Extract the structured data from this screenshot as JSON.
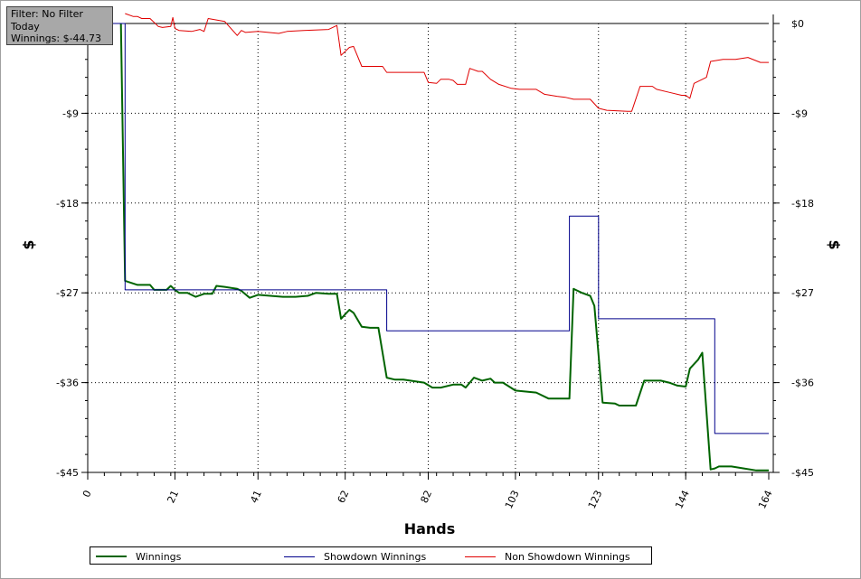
{
  "info_box": {
    "filter": "Filter: No Filter",
    "period": "Today",
    "winnings": "Winnings: $-44.73"
  },
  "legend": {
    "items": [
      {
        "label": "Winnings",
        "color": "#006400",
        "width": 2
      },
      {
        "label": "Showdown Winnings",
        "color": "#00008b",
        "width": 1
      },
      {
        "label": "Non Showdown Winnings",
        "color": "#e00000",
        "width": 1
      }
    ]
  },
  "chart_data": {
    "type": "line",
    "xlabel": "Hands",
    "ylabel": "$",
    "xlim": [
      0,
      164
    ],
    "ylim": [
      -45,
      0
    ],
    "x_ticks": [
      0,
      21,
      41,
      62,
      82,
      103,
      123,
      144,
      164
    ],
    "y_ticks": [
      0,
      -9,
      -18,
      -27,
      -36,
      -45
    ],
    "y_tick_labels": [
      "$0",
      "-$9",
      "-$18",
      "-$27",
      "-$36",
      "-$45"
    ],
    "grid": true,
    "series": [
      {
        "name": "Winnings",
        "color": "#006400",
        "x": [
          8,
          9,
          12,
          15,
          16,
          19,
          20,
          21,
          22,
          24,
          26,
          28,
          30,
          31,
          33,
          36,
          37,
          39,
          41,
          44,
          47,
          50,
          53,
          55,
          58,
          60,
          61,
          63,
          64,
          66,
          68,
          70,
          72,
          74,
          76,
          81,
          83,
          85,
          88,
          90,
          91,
          93,
          95,
          97,
          98,
          100,
          103,
          108,
          111,
          114,
          116,
          117,
          119,
          121,
          122,
          124,
          127,
          128,
          132,
          134,
          138,
          140,
          142,
          144,
          145,
          147,
          148,
          150,
          151,
          152,
          155,
          158,
          161,
          164
        ],
        "y": [
          0,
          -25.8,
          -26.2,
          -26.2,
          -26.7,
          -26.7,
          -26.3,
          -26.7,
          -27.0,
          -27.0,
          -27.4,
          -27.1,
          -27.1,
          -26.3,
          -26.4,
          -26.6,
          -26.8,
          -27.5,
          -27.2,
          -27.3,
          -27.4,
          -27.4,
          -27.3,
          -27.0,
          -27.1,
          -27.1,
          -29.6,
          -28.7,
          -29.0,
          -30.4,
          -30.5,
          -30.5,
          -35.5,
          -35.7,
          -35.7,
          -36.0,
          -36.5,
          -36.5,
          -36.2,
          -36.2,
          -36.5,
          -35.5,
          -35.8,
          -35.6,
          -36.0,
          -36.0,
          -36.8,
          -37.0,
          -37.6,
          -37.6,
          -37.6,
          -26.6,
          -27.0,
          -27.3,
          -28.3,
          -38.0,
          -38.1,
          -38.3,
          -38.3,
          -35.8,
          -35.8,
          -36.0,
          -36.3,
          -36.4,
          -34.6,
          -33.7,
          -33.0,
          -44.7,
          -44.6,
          -44.4,
          -44.4,
          -44.6,
          -44.8,
          -44.8
        ]
      },
      {
        "name": "Showdown Winnings",
        "color": "#00008b",
        "x": [
          0,
          8,
          9,
          71,
          72,
          115,
          116,
          122,
          123,
          150,
          151,
          164
        ],
        "y": [
          0,
          0,
          -26.7,
          -26.7,
          -30.8,
          -30.8,
          -19.3,
          -19.3,
          -29.6,
          -29.6,
          -41.1,
          -41.1
        ],
        "step": true
      },
      {
        "name": "Non Showdown Winnings",
        "color": "#e00000",
        "x": [
          9,
          11,
          12,
          13,
          15,
          17,
          18,
          20,
          20.5,
          21,
          22,
          25,
          27,
          28,
          29,
          33,
          36,
          37,
          38,
          41,
          46,
          48,
          52,
          58,
          60,
          61,
          63,
          64,
          66,
          68,
          70,
          71,
          72,
          77,
          81,
          82,
          84,
          85,
          87,
          88,
          89,
          91,
          92,
          94,
          95,
          97,
          99,
          102,
          104,
          108,
          110,
          113,
          115,
          117,
          121,
          123,
          125,
          130,
          131,
          133,
          136,
          137,
          140,
          143,
          144,
          145,
          146,
          149,
          150,
          153,
          156,
          159,
          162,
          164
        ],
        "y": [
          1.0,
          0.7,
          0.7,
          0.5,
          0.5,
          -0.3,
          -0.4,
          -0.3,
          0.6,
          -0.5,
          -0.7,
          -0.8,
          -0.6,
          -0.8,
          0.5,
          0.2,
          -1.2,
          -0.7,
          -0.9,
          -0.8,
          -1.0,
          -0.8,
          -0.7,
          -0.6,
          -0.2,
          -3.2,
          -2.4,
          -2.3,
          -4.3,
          -4.3,
          -4.3,
          -4.3,
          -4.9,
          -4.9,
          -4.9,
          -5.9,
          -6.0,
          -5.6,
          -5.6,
          -5.7,
          -6.1,
          -6.1,
          -4.5,
          -4.8,
          -4.8,
          -5.6,
          -6.1,
          -6.5,
          -6.6,
          -6.6,
          -7.1,
          -7.3,
          -7.4,
          -7.6,
          -7.6,
          -8.5,
          -8.7,
          -8.8,
          -8.8,
          -6.3,
          -6.3,
          -6.6,
          -6.9,
          -7.2,
          -7.2,
          -7.5,
          -6.0,
          -5.4,
          -3.8,
          -3.6,
          -3.6,
          -3.4,
          -3.9,
          -3.9
        ]
      }
    ]
  }
}
